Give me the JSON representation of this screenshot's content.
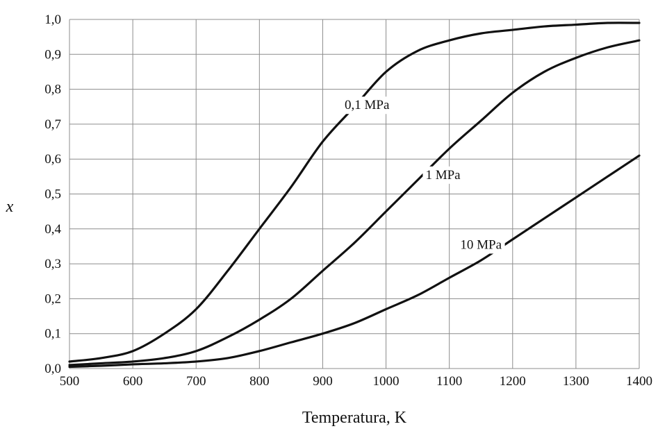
{
  "chart_data": {
    "type": "line",
    "xlabel": "Temperatura, K",
    "ylabel": "x",
    "xlim": [
      500,
      1400
    ],
    "ylim": [
      0,
      1
    ],
    "grid": true,
    "x_ticks": [
      "500",
      "600",
      "700",
      "800",
      "900",
      "1000",
      "1100",
      "1200",
      "1300",
      "1400"
    ],
    "y_ticks": [
      "0,0",
      "0,1",
      "0,2",
      "0,3",
      "0,4",
      "0,5",
      "0,6",
      "0,7",
      "0,8",
      "0,9",
      "1,0"
    ],
    "series": [
      {
        "name": "0,1 MPa",
        "label_at": [
          970,
          0.755
        ],
        "points": [
          [
            500,
            0.02
          ],
          [
            550,
            0.03
          ],
          [
            600,
            0.05
          ],
          [
            650,
            0.1
          ],
          [
            700,
            0.17
          ],
          [
            750,
            0.28
          ],
          [
            800,
            0.4
          ],
          [
            850,
            0.52
          ],
          [
            900,
            0.65
          ],
          [
            950,
            0.75
          ],
          [
            1000,
            0.85
          ],
          [
            1050,
            0.91
          ],
          [
            1100,
            0.94
          ],
          [
            1150,
            0.96
          ],
          [
            1200,
            0.97
          ],
          [
            1250,
            0.98
          ],
          [
            1300,
            0.985
          ],
          [
            1350,
            0.99
          ],
          [
            1400,
            0.99
          ]
        ]
      },
      {
        "name": "1 MPa",
        "label_at": [
          1090,
          0.555
        ],
        "points": [
          [
            500,
            0.01
          ],
          [
            550,
            0.015
          ],
          [
            600,
            0.02
          ],
          [
            650,
            0.03
          ],
          [
            700,
            0.05
          ],
          [
            750,
            0.09
          ],
          [
            800,
            0.14
          ],
          [
            850,
            0.2
          ],
          [
            900,
            0.28
          ],
          [
            950,
            0.36
          ],
          [
            1000,
            0.45
          ],
          [
            1050,
            0.54
          ],
          [
            1100,
            0.63
          ],
          [
            1150,
            0.71
          ],
          [
            1200,
            0.79
          ],
          [
            1250,
            0.85
          ],
          [
            1300,
            0.89
          ],
          [
            1350,
            0.92
          ],
          [
            1400,
            0.94
          ]
        ]
      },
      {
        "name": "10 MPa",
        "label_at": [
          1150,
          0.355
        ],
        "points": [
          [
            500,
            0.005
          ],
          [
            550,
            0.008
          ],
          [
            600,
            0.012
          ],
          [
            650,
            0.015
          ],
          [
            700,
            0.02
          ],
          [
            750,
            0.03
          ],
          [
            800,
            0.05
          ],
          [
            850,
            0.075
          ],
          [
            900,
            0.1
          ],
          [
            950,
            0.13
          ],
          [
            1000,
            0.17
          ],
          [
            1050,
            0.21
          ],
          [
            1100,
            0.26
          ],
          [
            1150,
            0.31
          ],
          [
            1200,
            0.37
          ],
          [
            1250,
            0.43
          ],
          [
            1300,
            0.49
          ],
          [
            1350,
            0.55
          ],
          [
            1400,
            0.61
          ]
        ]
      }
    ]
  }
}
